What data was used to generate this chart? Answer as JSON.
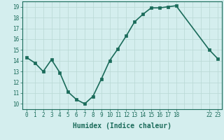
{
  "x": [
    0,
    1,
    2,
    3,
    4,
    5,
    6,
    7,
    8,
    9,
    10,
    11,
    12,
    13,
    14,
    15,
    16,
    17,
    18,
    22,
    23
  ],
  "y": [
    14.3,
    13.8,
    13.0,
    14.1,
    12.9,
    11.1,
    10.4,
    10.0,
    10.7,
    12.3,
    14.0,
    15.1,
    16.3,
    17.6,
    18.3,
    18.9,
    18.9,
    19.0,
    19.1,
    15.0,
    14.2
  ],
  "xticks": [
    0,
    1,
    2,
    3,
    4,
    5,
    6,
    7,
    8,
    9,
    10,
    11,
    12,
    13,
    14,
    15,
    16,
    17,
    18,
    22,
    23
  ],
  "xtick_labels": [
    "0",
    "1",
    "2",
    "3",
    "4",
    "5",
    "6",
    "7",
    "8",
    "9",
    "10",
    "11",
    "12",
    "13",
    "14",
    "15",
    "16",
    "17",
    "18",
    "22",
    "23"
  ],
  "yticks": [
    10,
    11,
    12,
    13,
    14,
    15,
    16,
    17,
    18,
    19
  ],
  "ylim": [
    9.5,
    19.5
  ],
  "xlim": [
    -0.5,
    23.5
  ],
  "xlabel": "Humidex (Indice chaleur)",
  "line_color": "#1a6b5a",
  "marker_color": "#1a6b5a",
  "bg_color": "#d4eeee",
  "grid_color_major": "#b8d8d4",
  "grid_color_minor": "#c8e4e0",
  "axis_color": "#1a6b5a",
  "tick_color": "#1a6b5a",
  "label_color": "#1a6b5a",
  "linewidth": 1.2,
  "markersize": 2.5,
  "tick_fontsize": 5.5,
  "xlabel_fontsize": 7.0
}
